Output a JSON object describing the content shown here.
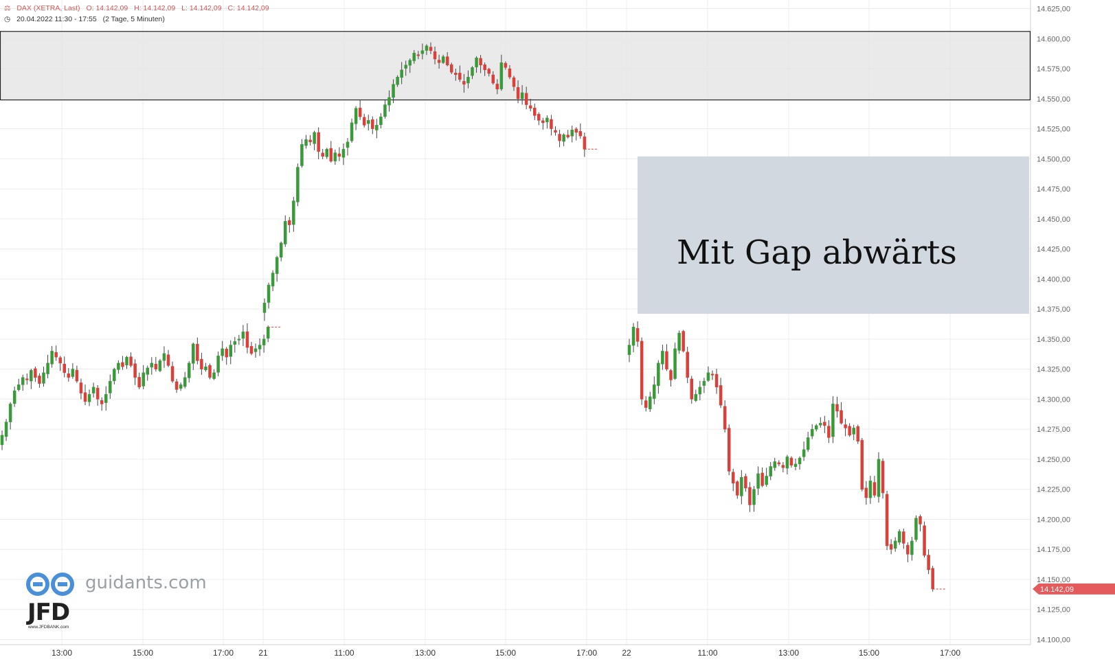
{
  "header": {
    "instrument": "DAX (XETRA, Last)",
    "open": "O: 14.142,09",
    "high": "H: 14.142,09",
    "low": "L: 14.142,09",
    "close": "C: 14.142,09",
    "range": "20.04.2022 11:30 - 17:55",
    "interval": "(2 Tage, 5 Minuten)"
  },
  "watermark": {
    "site": "guidants.com",
    "logo": "JFD",
    "logo_sub": "www.JFDBANK.com"
  },
  "annotation": "Mit Gap abwärts",
  "last_price_label": "14.142,09",
  "colors": {
    "up": "#3a9a3a",
    "down": "#d9403a",
    "zone_top": "#e6e6e6",
    "zone_gap": "#cfd6de",
    "last": "#e35b5b"
  },
  "chart_data": {
    "type": "candlestick",
    "title": "",
    "ylim": [
      14100,
      14630
    ],
    "y_ticks": [
      "14.625,00",
      "14.600,00",
      "14.575,00",
      "14.550,00",
      "14.525,00",
      "14.500,00",
      "14.475,00",
      "14.450,00",
      "14.425,00",
      "14.400,00",
      "14.375,00",
      "14.350,00",
      "14.325,00",
      "14.300,00",
      "14.275,00",
      "14.250,00",
      "14.225,00",
      "14.200,00",
      "14.175,00",
      "14.150,00",
      "14.125,00",
      "14.100,00"
    ],
    "x_labels": [
      "13:00",
      "15:00",
      "17:00",
      "21",
      "11:00",
      "13:00",
      "15:00",
      "17:00",
      "22",
      "11:00",
      "13:00",
      "15:00",
      "17:00"
    ],
    "zones": [
      {
        "name": "resistance",
        "from": 14549,
        "to": 14606
      },
      {
        "name": "gap",
        "label": "Mit Gap abwärts",
        "from": 14371,
        "to": 14502
      }
    ],
    "last_close": 14142.09,
    "sessions": [
      {
        "day": "20",
        "closes": [
          14270,
          14281,
          14296,
          14307,
          14312,
          14318,
          14316,
          14324,
          14318,
          14313,
          14322,
          14330,
          14340,
          14335,
          14330,
          14322,
          14318,
          14325,
          14315,
          14305,
          14298,
          14304,
          14310,
          14300,
          14296,
          14304,
          14315,
          14325,
          14330,
          14327,
          14335,
          14328,
          14318,
          14310,
          14322,
          14326,
          14330,
          14325,
          14332,
          14338,
          14328,
          14315,
          14308,
          14312,
          14318,
          14330,
          14346,
          14332,
          14325,
          14327,
          14318,
          14322,
          14336,
          14342,
          14335,
          14345,
          14348,
          14350,
          14356,
          14343,
          14338,
          14342,
          14345,
          14350,
          14360
        ]
      },
      {
        "day": "21",
        "closes": [
          14380,
          14395,
          14405,
          14418,
          14430,
          14448,
          14445,
          14465,
          14493,
          14512,
          14516,
          14514,
          14522,
          14506,
          14502,
          14508,
          14498,
          14505,
          14502,
          14508,
          14514,
          14530,
          14542,
          14535,
          14528,
          14532,
          14525,
          14528,
          14535,
          14545,
          14551,
          14562,
          14568,
          14574,
          14578,
          14582,
          14588,
          14586,
          14590,
          14594,
          14590,
          14583,
          14580,
          14585,
          14578,
          14572,
          14570,
          14566,
          14562,
          14568,
          14576,
          14584,
          14578,
          14574,
          14571,
          14563,
          14558,
          14580,
          14576,
          14568,
          14560,
          14550,
          14555,
          14545,
          14542,
          14536,
          14532,
          14530,
          14534,
          14525,
          14522,
          14515,
          14520,
          14518,
          14524,
          14522,
          14519,
          14508
        ]
      },
      {
        "day": "22",
        "closes": [
          14345,
          14360,
          14348,
          14300,
          14293,
          14302,
          14312,
          14330,
          14340,
          14325,
          14316,
          14342,
          14355,
          14340,
          14318,
          14300,
          14304,
          14310,
          14315,
          14322,
          14320,
          14310,
          14295,
          14275,
          14240,
          14230,
          14220,
          14235,
          14226,
          14212,
          14225,
          14238,
          14228,
          14236,
          14244,
          14248,
          14246,
          14243,
          14252,
          14245,
          14246,
          14251,
          14258,
          14268,
          14275,
          14278,
          14280,
          14278,
          14268,
          14296,
          14290,
          14280,
          14276,
          14270,
          14276,
          14265,
          14225,
          14218,
          14232,
          14220,
          14250,
          14222,
          14178,
          14175,
          14182,
          14190,
          14180,
          14171,
          14182,
          14201,
          14196,
          14170,
          14158,
          14142
        ]
      }
    ]
  }
}
